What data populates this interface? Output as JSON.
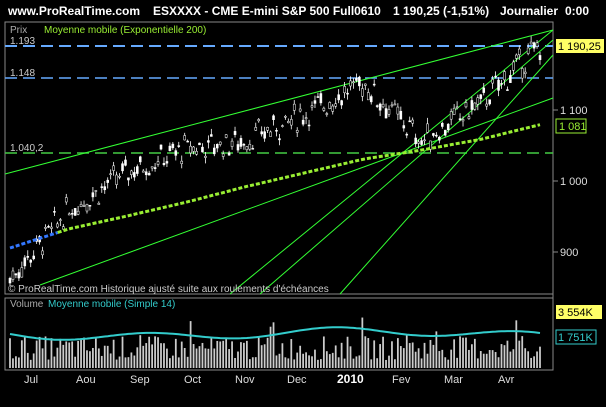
{
  "header": {
    "site": "www.ProRealTime.com",
    "instrument": "ESXXXX - CME E-mini S&P 500 Full0610",
    "price_change": "1 190,25 (-1,51%)",
    "period": "Journalier",
    "time": "0:00"
  },
  "price_panel": {
    "label": "Prix",
    "indicator": "Moyenne mobile (Exponentielle 200)",
    "watermark": "© ProRealTime.com Historique ajusté suite aux roulements d'échéances",
    "levels": [
      {
        "value": 1193,
        "label": "1.193"
      },
      {
        "value": 1148,
        "label": "1.148"
      },
      {
        "value": 1040.2,
        "label": "1.040,2"
      }
    ],
    "axis_ticks": [
      "1 100",
      "1 000",
      "900"
    ],
    "badges": {
      "price": "1 190,25",
      "ma": "1 081"
    }
  },
  "volume_panel": {
    "label": "Volume",
    "indicator": "Moyenne mobile (Simple 14)",
    "badges": {
      "top": "3 554K",
      "ma": "1 751K"
    }
  },
  "x_axis": [
    "Jul",
    "Aou",
    "Sep",
    "Oct",
    "Nov",
    "Dec",
    "2010",
    "Fev",
    "Mar",
    "Avr"
  ],
  "colors": {
    "candle": "#ffffff",
    "trend": "#33ff33",
    "ema_early": "#3377ff",
    "ema": "#99ee33",
    "level_blue": "#66aaff",
    "level_green": "#44cc44",
    "badge_yellow": "#ffff66",
    "volume": "#cccccc",
    "volume_ma": "#33cccc"
  },
  "chart_data": {
    "type": "line",
    "title": "ESXXXX - CME E-mini S&P 500 Full0610",
    "xlabel": "",
    "ylabel": "Prix",
    "ylim": [
      860,
      1215
    ],
    "x": [
      "Jul",
      "Aou",
      "Sep",
      "Oct",
      "Nov",
      "Dec",
      "2010",
      "Fev",
      "Mar",
      "Avr"
    ],
    "series": [
      {
        "name": "",
        "values": [
          880,
          970,
          1020,
          1050,
          1060,
          1095,
          1135,
          1060,
          1110,
          1185
        ]
      },
      {
        "name": "Moyenne mobile (Exponentielle 200)",
        "values": [
          920,
          945,
          962,
          980,
          1000,
          1018,
          1036,
          1048,
          1062,
          1081
        ]
      }
    ]
  }
}
